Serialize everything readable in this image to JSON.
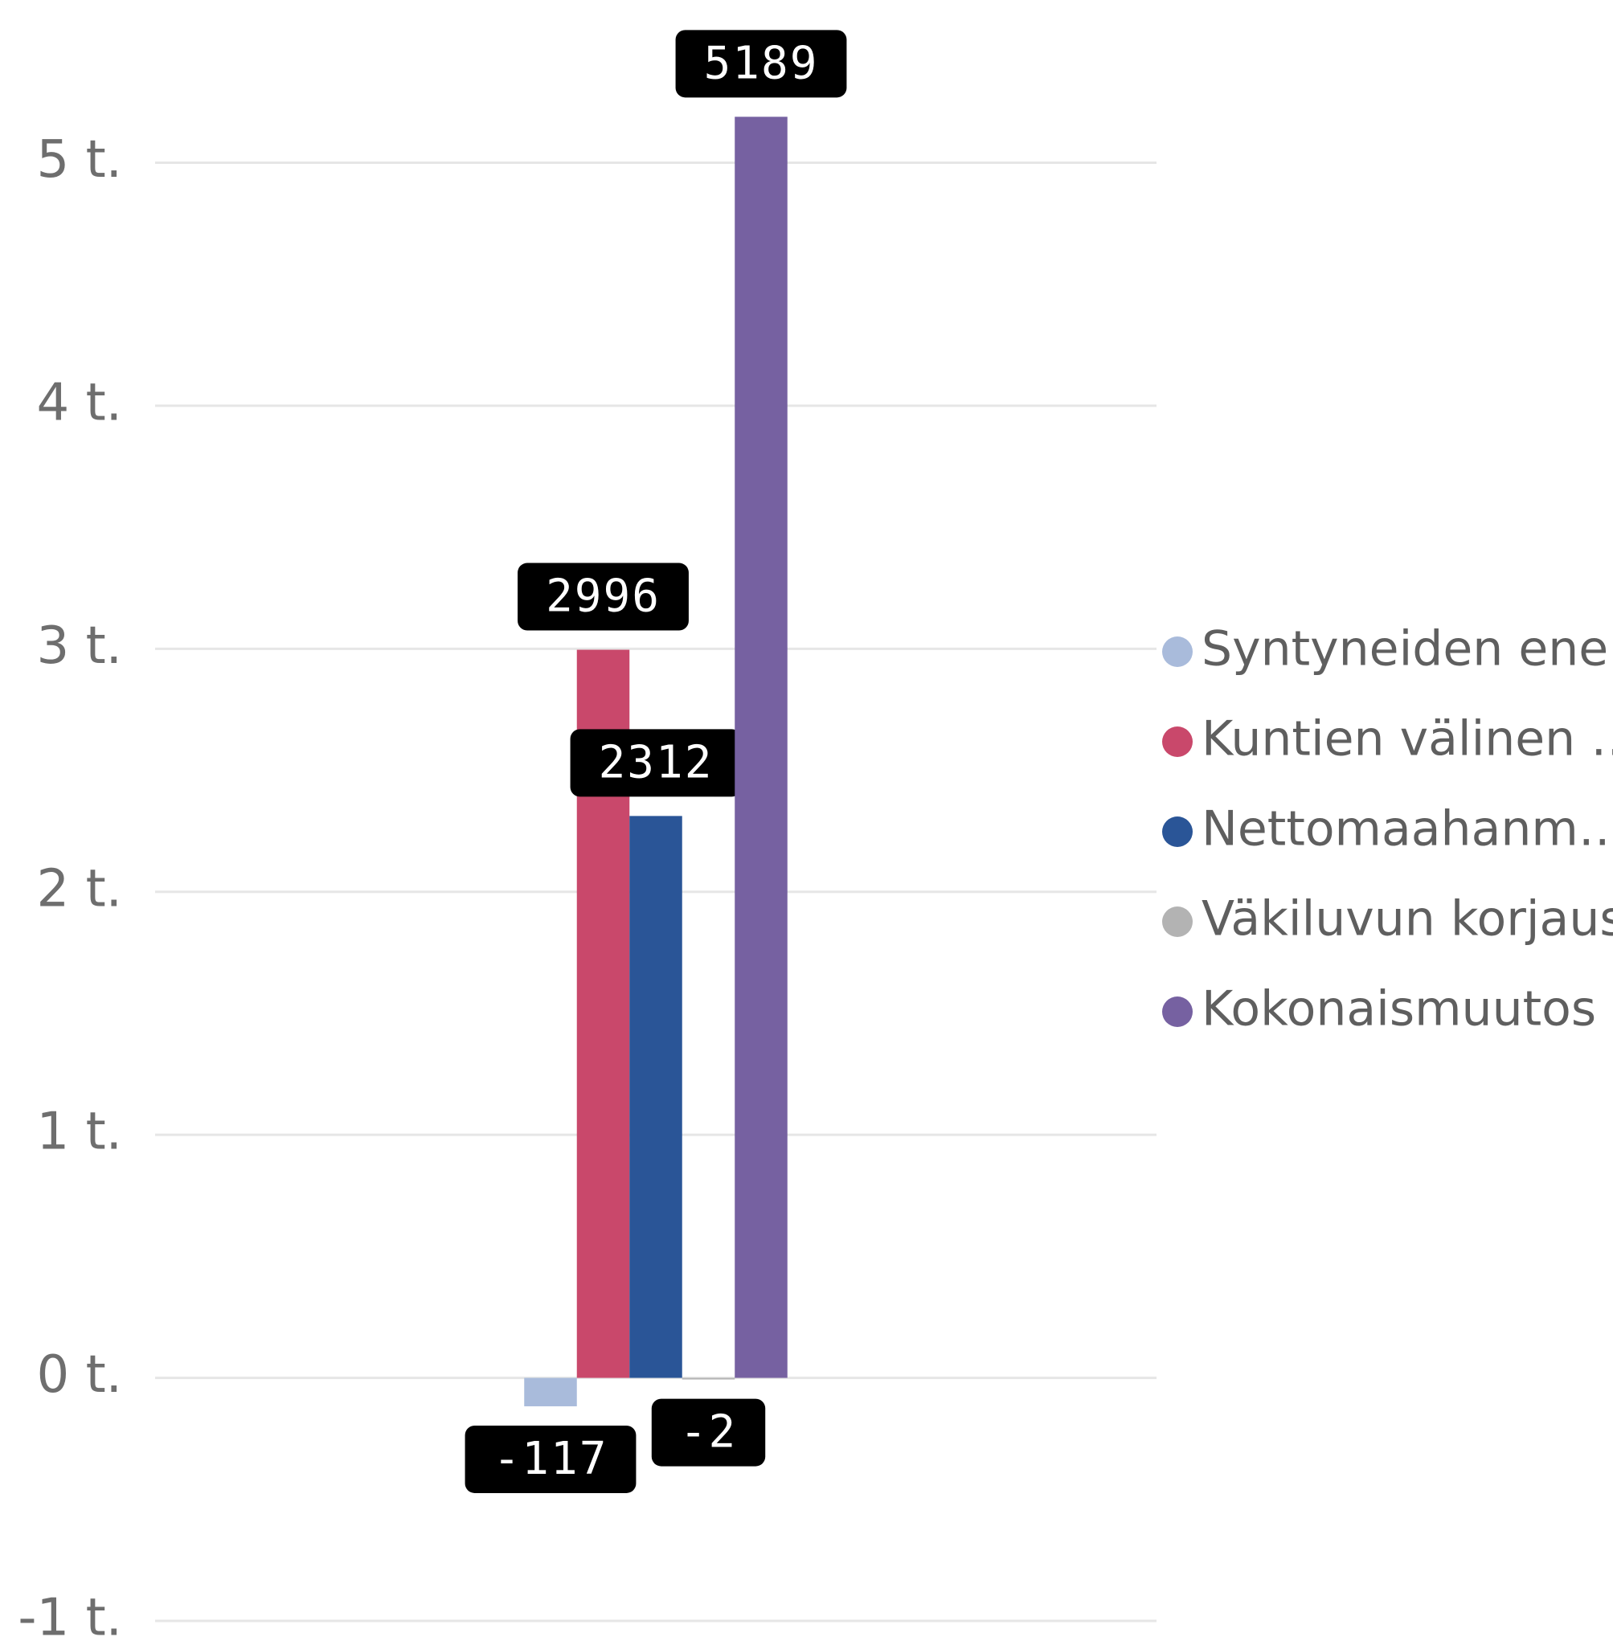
{
  "chart_data": {
    "type": "bar",
    "categories": [
      null
    ],
    "series": [
      {
        "name": "Syntyneiden ene…",
        "color": "#a9bbdb",
        "values": [
          -117
        ]
      },
      {
        "name": "Kuntien välinen …",
        "color": "#c9486b",
        "values": [
          2996
        ]
      },
      {
        "name": "Nettomaahanm…",
        "color": "#2a5597",
        "values": [
          2312
        ]
      },
      {
        "name": "Väkiluvun korjaus",
        "color": "#b3b3b3",
        "values": [
          -2
        ]
      },
      {
        "name": "Kokonaismuutos",
        "color": "#7661a1",
        "values": [
          5189
        ]
      }
    ],
    "ylim": [
      -1000,
      5200
    ],
    "yticks": [
      {
        "value": -1000,
        "label": "-1 t."
      },
      {
        "value": 0,
        "label": "0 t."
      },
      {
        "value": 1000,
        "label": "1 t."
      },
      {
        "value": 2000,
        "label": "2 t."
      },
      {
        "value": 3000,
        "label": "3 t."
      },
      {
        "value": 4000,
        "label": "4 t."
      },
      {
        "value": 5000,
        "label": "5 t."
      }
    ],
    "grid": true,
    "legend": "right"
  }
}
